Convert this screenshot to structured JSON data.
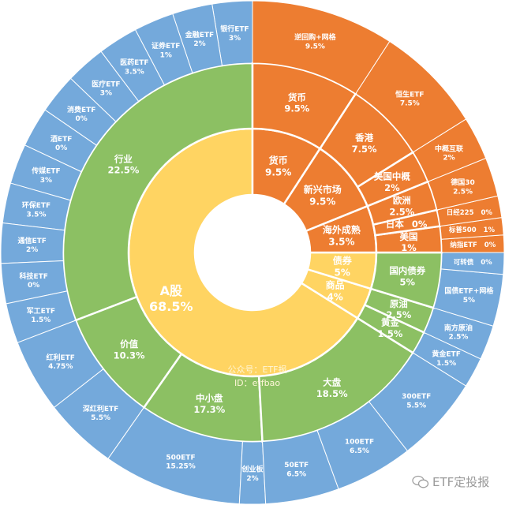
{
  "chart_data": {
    "type": "pie",
    "subtype": "sunburst",
    "colors": {
      "货币/海外": "#ED7D31",
      "level1": "#FFD462",
      "level2": "#8CC063",
      "level3": "#74A9DB",
      "hole": "#FFFFFF"
    },
    "center_note": [
      "公众号：ETF报",
      "ID：etfbao"
    ],
    "nodes": [
      {
        "name": "货币",
        "value": "9.5%",
        "children": [
          {
            "name": "货币",
            "value": "9.5%",
            "children": [
              {
                "name": "逆回购+网格",
                "value": "9.5%"
              }
            ]
          }
        ]
      },
      {
        "name": "新兴市场",
        "value": "9.5%",
        "children": [
          {
            "name": "香港",
            "value": "7.5%",
            "children": [
              {
                "name": "恒生ETF",
                "value": "7.5%"
              }
            ]
          },
          {
            "name": "美国中概",
            "value": "2%",
            "children": [
              {
                "name": "中概互联",
                "value": "2%"
              }
            ]
          }
        ]
      },
      {
        "name": "海外成熟",
        "value": "3.5%",
        "children": [
          {
            "name": "欧洲",
            "value": "2.5%",
            "children": [
              {
                "name": "德国30",
                "value": "2.5%"
              }
            ]
          },
          {
            "name": "日本",
            "value": "0%",
            "children": [
              {
                "name": "日经225",
                "value": "0%"
              }
            ]
          },
          {
            "name": "美国",
            "value": "1%",
            "children": [
              {
                "name": "标普500",
                "value": "1%"
              },
              {
                "name": "纳指ETF",
                "value": "0%"
              }
            ]
          }
        ]
      },
      {
        "name": "债券",
        "value": "5%",
        "children": [
          {
            "name": "国内债券",
            "value": "5%",
            "children": [
              {
                "name": "可转债",
                "value": "0%"
              },
              {
                "name": "国债ETF+网格",
                "value": "5%"
              }
            ]
          }
        ]
      },
      {
        "name": "商品",
        "value": "4%",
        "children": [
          {
            "name": "原油",
            "value": "2.5%",
            "children": [
              {
                "name": "南方原油",
                "value": "2.5%"
              }
            ]
          },
          {
            "name": "黄金",
            "value": "1.5%",
            "children": [
              {
                "name": "黄金ETF",
                "value": "1.5%"
              }
            ]
          }
        ]
      },
      {
        "name": "A股",
        "value": "68.5%",
        "children": [
          {
            "name": "大盘",
            "value": "18.5%",
            "children": [
              {
                "name": "300ETF",
                "value": "5.5%"
              },
              {
                "name": "100ETF",
                "value": "6.5%"
              },
              {
                "name": "50ETF",
                "value": "6.5%"
              }
            ]
          },
          {
            "name": "中小盘",
            "value": "17.3%",
            "children": [
              {
                "name": "创业板",
                "value": "2%"
              },
              {
                "name": "500ETF",
                "value": "15.25%"
              }
            ]
          },
          {
            "name": "价值",
            "value": "10.3%",
            "children": [
              {
                "name": "深红利ETF",
                "value": "5.5%"
              },
              {
                "name": "红利ETF",
                "value": "4.75%"
              }
            ]
          },
          {
            "name": "行业",
            "value": "22.5%",
            "children": [
              {
                "name": "军工ETF",
                "value": "1.5%"
              },
              {
                "name": "科技ETF",
                "value": "0%"
              },
              {
                "name": "通信ETF",
                "value": "2%"
              },
              {
                "name": "环保ETF",
                "value": "3.5%"
              },
              {
                "name": "传媒ETF",
                "value": "3%"
              },
              {
                "name": "酒ETF",
                "value": "0%"
              },
              {
                "name": "消费ETF",
                "value": "0%"
              },
              {
                "name": "医疗ETF",
                "value": "3%"
              },
              {
                "name": "医药ETF",
                "value": "3.5%"
              },
              {
                "name": "证券ETF",
                "value": "1%"
              },
              {
                "name": "金融ETF",
                "value": "2%"
              },
              {
                "name": "银行ETF",
                "value": "3%"
              }
            ]
          }
        ]
      }
    ]
  },
  "watermark": {
    "icon": "wechat-icon",
    "text": "ETF定投报"
  }
}
